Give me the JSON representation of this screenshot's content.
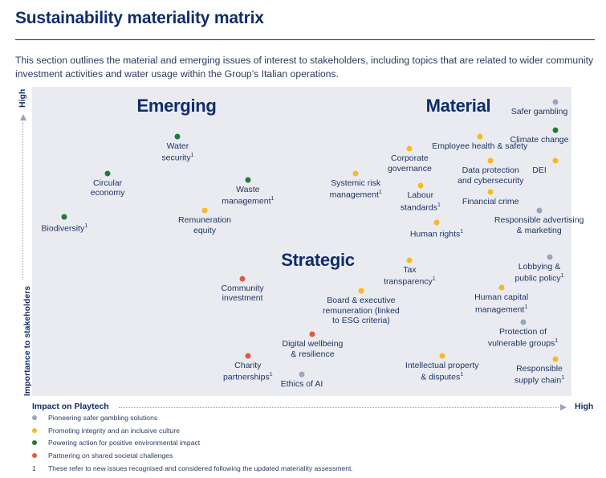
{
  "header": {
    "title": "Sustainability materiality matrix",
    "intro": "This section outlines the material and emerging issues of interest to stakeholders, including topics that are related to wider community investment activities and water usage within the Group’s Italian operations."
  },
  "chart_data": {
    "type": "scatter",
    "x_axis": {
      "label": "Impact on Playtech",
      "high_label": "High",
      "range": [
        0,
        100
      ]
    },
    "y_axis": {
      "label": "Importance to stakeholders",
      "high_label": "High",
      "range": [
        0,
        100
      ]
    },
    "quadrant_labels": [
      "Emerging",
      "Material",
      "Strategic"
    ],
    "categories": [
      {
        "id": "grey",
        "name": "Pioneering safer gambling solutions",
        "color": "#9aa5bd"
      },
      {
        "id": "yellow",
        "name": "Promoting integrity and an inclusive culture",
        "color": "#f7b924"
      },
      {
        "id": "green",
        "name": "Powering action for positive environmental impact",
        "color": "#1f7a3a"
      },
      {
        "id": "red",
        "name": "Partnering on shared societal challenges",
        "color": "#e05a3a"
      }
    ],
    "points": [
      {
        "label": "Safer gambling",
        "category": "grey",
        "x": 97,
        "y": 95,
        "new": false
      },
      {
        "label": "Climate change",
        "category": "green",
        "x": 97,
        "y": 86,
        "new": false
      },
      {
        "label": "DEI",
        "category": "yellow",
        "x": 97,
        "y": 76,
        "new": false
      },
      {
        "label": "Employee health & safety",
        "category": "yellow",
        "x": 83,
        "y": 84,
        "new": false
      },
      {
        "label": "Corporate governance",
        "category": "yellow",
        "x": 70,
        "y": 80,
        "new": false
      },
      {
        "label": "Data protection and cybersecurity",
        "category": "yellow",
        "x": 85,
        "y": 76,
        "new": false
      },
      {
        "label": "Systemic risk management",
        "category": "yellow",
        "x": 60,
        "y": 72,
        "new": true
      },
      {
        "label": "Labour standards",
        "category": "yellow",
        "x": 72,
        "y": 68,
        "new": true
      },
      {
        "label": "Financial crime",
        "category": "yellow",
        "x": 85,
        "y": 66,
        "new": false
      },
      {
        "label": "Human rights",
        "category": "yellow",
        "x": 75,
        "y": 56,
        "new": true
      },
      {
        "label": "Responsible advertising & marketing",
        "category": "grey",
        "x": 94,
        "y": 60,
        "new": false
      },
      {
        "label": "Water security",
        "category": "green",
        "x": 27,
        "y": 84,
        "new": true
      },
      {
        "label": "Circular economy",
        "category": "green",
        "x": 14,
        "y": 72,
        "new": false
      },
      {
        "label": "Waste management",
        "category": "green",
        "x": 40,
        "y": 70,
        "new": true
      },
      {
        "label": "Remuneration equity",
        "category": "yellow",
        "x": 32,
        "y": 60,
        "new": false
      },
      {
        "label": "Biodiversity",
        "category": "green",
        "x": 6,
        "y": 58,
        "new": true
      },
      {
        "label": "Tax transparency",
        "category": "yellow",
        "x": 70,
        "y": 44,
        "new": true
      },
      {
        "label": "Lobbying & public policy",
        "category": "grey",
        "x": 96,
        "y": 45,
        "new": true
      },
      {
        "label": "Community investment",
        "category": "red",
        "x": 39,
        "y": 38,
        "new": false
      },
      {
        "label": "Board & executive remuneration (linked to ESG criteria)",
        "category": "yellow",
        "x": 61,
        "y": 34,
        "new": false
      },
      {
        "label": "Human capital management",
        "category": "yellow",
        "x": 87,
        "y": 35,
        "new": true
      },
      {
        "label": "Protection of vulnerable groups",
        "category": "grey",
        "x": 91,
        "y": 24,
        "new": true
      },
      {
        "label": "Digital wellbeing & resilience",
        "category": "red",
        "x": 52,
        "y": 20,
        "new": false
      },
      {
        "label": "Charity partnerships",
        "category": "red",
        "x": 40,
        "y": 13,
        "new": true
      },
      {
        "label": "Intellectual property & disputes",
        "category": "yellow",
        "x": 76,
        "y": 13,
        "new": true
      },
      {
        "label": "Responsible supply chain",
        "category": "yellow",
        "x": 97,
        "y": 12,
        "new": true
      },
      {
        "label": "Ethics of AI",
        "category": "grey",
        "x": 50,
        "y": 7,
        "new": false
      }
    ]
  },
  "footnote": {
    "mark": "1",
    "text": "These refer to new issues recognised and considered following the updated materiality assessment."
  }
}
